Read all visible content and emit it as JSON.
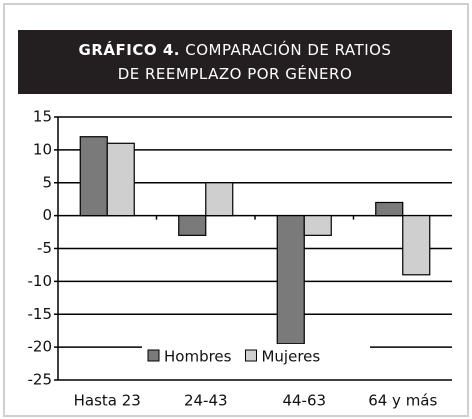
{
  "chart_data": {
    "type": "bar",
    "title_label": "GRÁFICO 4.",
    "title": "COMPARACIÓN DE RATIOS DE REEMPLAZO POR GÉNERO",
    "categories": [
      "Hasta 23",
      "24-43",
      "44-63",
      "64 y más"
    ],
    "series": [
      {
        "name": "Hombres",
        "color": "#7a7a7a",
        "values": [
          12,
          -3,
          -19.5,
          2
        ]
      },
      {
        "name": "Mujeres",
        "color": "#cfcfcf",
        "values": [
          11,
          5,
          -3,
          -9
        ]
      }
    ],
    "ylim": [
      -25,
      15
    ],
    "yticks": [
      15,
      10,
      5,
      0,
      -5,
      -10,
      -15,
      -20,
      -25
    ],
    "grid": true,
    "legend": "bottom"
  }
}
